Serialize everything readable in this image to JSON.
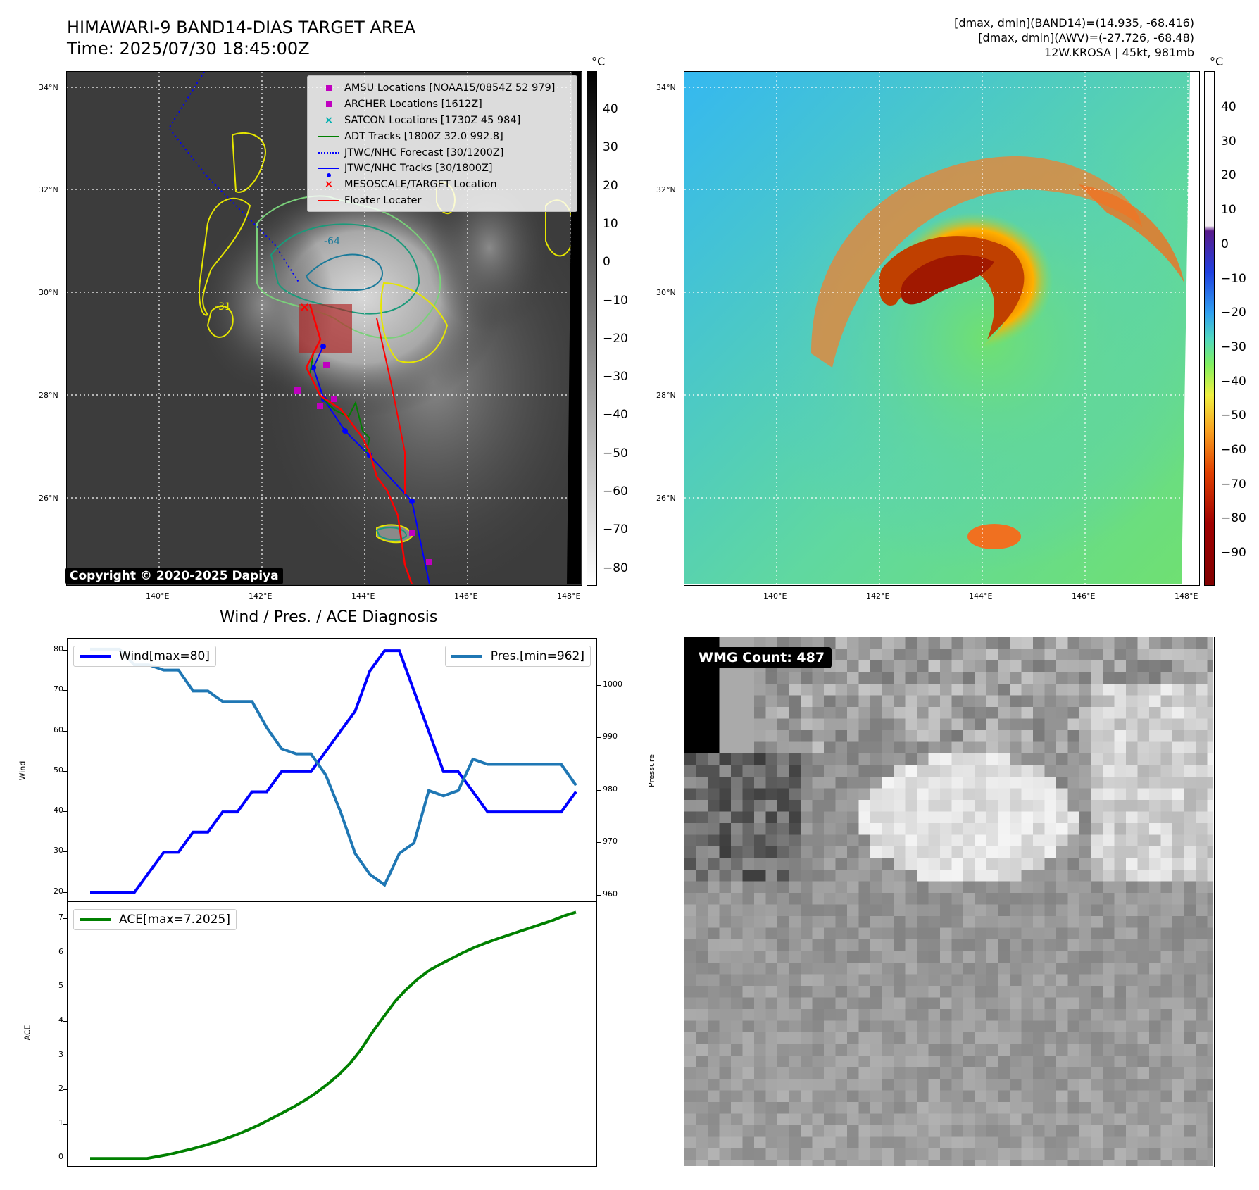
{
  "header": {
    "title_line1": "HIMAWARI-9 BAND14-DIAS TARGET AREA",
    "title_line2": "Time: 2025/07/30 18:45:00Z",
    "info_line1": "[dmax, dmin](BAND14)=(14.935, -68.416)",
    "info_line2": "[dmax, dmin](AWV)=(-27.726, -68.48)",
    "info_line3": "12W.KROSA | 45kt, 981mb"
  },
  "map": {
    "lat_labels": [
      "34°N",
      "32°N",
      "30°N",
      "28°N",
      "26°N"
    ],
    "lon_labels": [
      "140°E",
      "142°E",
      "144°E",
      "146°E",
      "148°E"
    ],
    "contour_label_1": "-64",
    "contour_label_2": "-31",
    "copyright": "Copyright © 2020-2025 Dapiya",
    "legend": [
      {
        "label": "AMSU Locations [NOAA15/0854Z 52 979]",
        "symbol": "square",
        "color": "#c000c0"
      },
      {
        "label": "ARCHER Locations [1612Z]",
        "symbol": "square",
        "color": "#c000c0"
      },
      {
        "label": "SATCON Locations [1730Z 45 984]",
        "symbol": "x",
        "color": "#00b0b0"
      },
      {
        "label": "ADT Tracks [1800Z 32.0 992.8]",
        "symbol": "line",
        "color": "#007f00"
      },
      {
        "label": "JTWC/NHC Forecast [30/1200Z]",
        "symbol": "dotted",
        "color": "#0000ff"
      },
      {
        "label": "JTWC/NHC Tracks [30/1800Z]",
        "symbol": "linedot",
        "color": "#0000ff"
      },
      {
        "label": "MESOSCALE/TARGET Location",
        "symbol": "x",
        "color": "#ff0000"
      },
      {
        "label": "Floater Locater",
        "symbol": "line",
        "color": "#ff0000"
      }
    ]
  },
  "cbar_left": {
    "unit": "°C",
    "ticks": [
      "40",
      "30",
      "20",
      "10",
      "0",
      "−10",
      "−20",
      "−30",
      "−40",
      "−50",
      "−60",
      "−70",
      "−80"
    ]
  },
  "cbar_right": {
    "unit": "°C",
    "ticks": [
      "40",
      "30",
      "20",
      "10",
      "0",
      "−10",
      "−20",
      "−30",
      "−40",
      "−50",
      "−60",
      "−70",
      "−80",
      "−90"
    ]
  },
  "diagnosis": {
    "title": "Wind / Pres. / ACE Diagnosis",
    "wind_legend": "Wind[max=80]",
    "pres_legend": "Pres.[min=962]",
    "ace_legend": "ACE[max=7.2025]",
    "wind_ylabel": "Wind",
    "pres_ylabel": "Pressure",
    "ace_ylabel": "ACE"
  },
  "wmg": {
    "label": "WMG Count: 487"
  },
  "chart_data": [
    {
      "type": "line",
      "title": "Wind / Pres. / ACE Diagnosis",
      "x": [
        0,
        1,
        2,
        3,
        4,
        5,
        6,
        7,
        8,
        9,
        10,
        11,
        12,
        13,
        14,
        15,
        16,
        17,
        18,
        19,
        20,
        21,
        22,
        23,
        24,
        25,
        26,
        27,
        28,
        29,
        30,
        31,
        32,
        33
      ],
      "series": [
        {
          "name": "Wind[max=80]",
          "axis": "left",
          "color": "#0000ff",
          "values": [
            20,
            20,
            20,
            20,
            25,
            30,
            30,
            35,
            35,
            40,
            40,
            45,
            45,
            50,
            50,
            50,
            55,
            60,
            65,
            75,
            80,
            80,
            70,
            60,
            50,
            50,
            45,
            40,
            40,
            40,
            40,
            40,
            40,
            45
          ]
        },
        {
          "name": "Pres.[min=962]",
          "axis": "right",
          "color": "#1f77b4",
          "values": [
            1007,
            1007,
            1007,
            1004,
            1004,
            1003,
            1003,
            999,
            999,
            997,
            997,
            997,
            992,
            988,
            987,
            987,
            983,
            976,
            968,
            964,
            962,
            968,
            970,
            980,
            979,
            980,
            986,
            985,
            985,
            985,
            985,
            985,
            985,
            981
          ]
        }
      ],
      "ylim_left": [
        18,
        83
      ],
      "ylim_right": [
        959,
        1009
      ],
      "yticks_left": [
        20,
        30,
        40,
        50,
        60,
        70,
        80
      ],
      "yticks_right": [
        960,
        970,
        980,
        990,
        1000
      ]
    },
    {
      "type": "line",
      "series": [
        {
          "name": "ACE[max=7.2025]",
          "color": "#008000",
          "values": [
            0,
            0,
            0,
            0,
            0,
            0,
            0.06,
            0.12,
            0.2,
            0.28,
            0.37,
            0.47,
            0.58,
            0.7,
            0.84,
            0.99,
            1.16,
            1.33,
            1.51,
            1.7,
            1.92,
            2.17,
            2.45,
            2.78,
            3.2,
            3.7,
            4.15,
            4.6,
            4.95,
            5.25,
            5.5,
            5.68,
            5.85,
            6.02,
            6.17,
            6.3,
            6.42,
            6.53,
            6.64,
            6.75,
            6.86,
            6.97,
            7.1,
            7.2025
          ]
        }
      ],
      "ylim": [
        -0.2,
        7.5
      ],
      "yticks": [
        0,
        1,
        2,
        3,
        4,
        5,
        6,
        7
      ]
    }
  ]
}
